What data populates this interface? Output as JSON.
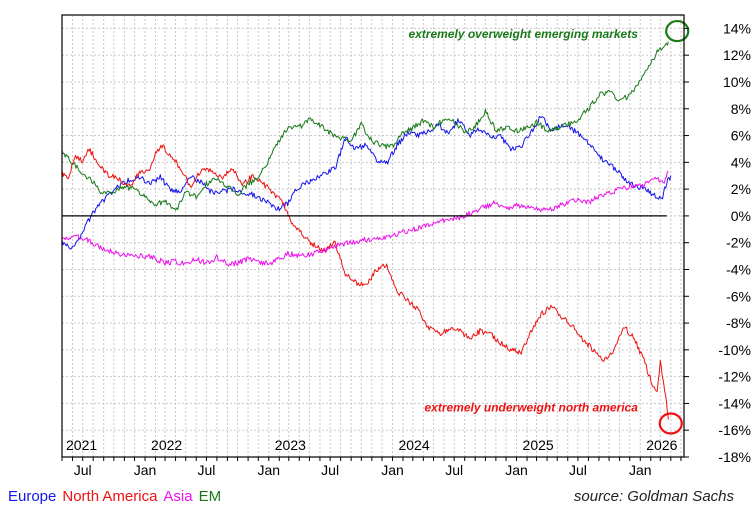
{
  "chart_data": {
    "type": "line",
    "source": "source: Goldman Sachs",
    "ylim": [
      -18,
      15
    ],
    "y_ticks": [
      14,
      12,
      10,
      8,
      6,
      4,
      2,
      0,
      -2,
      -4,
      -6,
      -8,
      -10,
      -12,
      -14,
      -16,
      -18
    ],
    "y_tick_suffix": "%",
    "x_range": [
      "2021-05-01",
      "2026-05-10"
    ],
    "year_labels": [
      {
        "date": "2021-01-01",
        "label": "2021"
      },
      {
        "date": "2022-01-01",
        "label": "2022"
      },
      {
        "date": "2023-01-01",
        "label": "2023"
      },
      {
        "date": "2024-01-01",
        "label": "2024"
      },
      {
        "date": "2025-01-01",
        "label": "2025"
      },
      {
        "date": "2026-01-01",
        "label": "2026"
      }
    ],
    "month_labels": [
      {
        "date": "2021-07-01",
        "label": "Jul"
      },
      {
        "date": "2022-01-01",
        "label": "Jan"
      },
      {
        "date": "2022-07-01",
        "label": "Jul"
      },
      {
        "date": "2023-01-01",
        "label": "Jan"
      },
      {
        "date": "2023-07-01",
        "label": "Jul"
      },
      {
        "date": "2024-01-01",
        "label": "Jan"
      },
      {
        "date": "2024-07-01",
        "label": "Jul"
      },
      {
        "date": "2025-01-01",
        "label": "Jan"
      },
      {
        "date": "2025-07-01",
        "label": "Jul"
      },
      {
        "date": "2026-01-01",
        "label": "Jan"
      }
    ],
    "grid": true,
    "legend_position": "bottom-left",
    "series": [
      {
        "name": "Europe",
        "color": "#1515ee",
        "points": [
          [
            "2021-05-01",
            -2.0
          ],
          [
            "2021-06-01",
            -2.4
          ],
          [
            "2021-06-20",
            -1.8
          ],
          [
            "2021-07-15",
            -0.5
          ],
          [
            "2021-08-15",
            0.8
          ],
          [
            "2021-09-15",
            1.5
          ],
          [
            "2021-10-15",
            2.2
          ],
          [
            "2021-11-15",
            2.7
          ],
          [
            "2021-12-15",
            2.9
          ],
          [
            "2022-01-15",
            2.4
          ],
          [
            "2022-02-15",
            2.9
          ],
          [
            "2022-03-15",
            2.0
          ],
          [
            "2022-04-15",
            1.8
          ],
          [
            "2022-05-15",
            3.0
          ],
          [
            "2022-06-15",
            2.5
          ],
          [
            "2022-07-15",
            1.8
          ],
          [
            "2022-08-15",
            1.8
          ],
          [
            "2022-09-15",
            2.0
          ],
          [
            "2022-10-15",
            1.8
          ],
          [
            "2022-11-15",
            1.6
          ],
          [
            "2022-12-15",
            1.2
          ],
          [
            "2023-01-10",
            0.8
          ],
          [
            "2023-02-01",
            0.5
          ],
          [
            "2023-03-01",
            1.0
          ],
          [
            "2023-03-20",
            2.0
          ],
          [
            "2023-04-15",
            2.4
          ],
          [
            "2023-05-15",
            2.8
          ],
          [
            "2023-06-15",
            3.2
          ],
          [
            "2023-07-15",
            3.5
          ],
          [
            "2023-08-15",
            5.8
          ],
          [
            "2023-09-15",
            5.0
          ],
          [
            "2023-10-15",
            5.3
          ],
          [
            "2023-11-15",
            4.2
          ],
          [
            "2023-12-15",
            3.9
          ],
          [
            "2024-01-15",
            5.3
          ],
          [
            "2024-02-15",
            6.2
          ],
          [
            "2024-03-15",
            6.0
          ],
          [
            "2024-04-15",
            6.3
          ],
          [
            "2024-05-15",
            6.8
          ],
          [
            "2024-06-15",
            6.2
          ],
          [
            "2024-07-15",
            7.2
          ],
          [
            "2024-08-15",
            6.0
          ],
          [
            "2024-09-15",
            6.5
          ],
          [
            "2024-10-15",
            6.0
          ],
          [
            "2024-11-15",
            5.9
          ],
          [
            "2024-12-15",
            5.0
          ],
          [
            "2025-01-15",
            5.2
          ],
          [
            "2025-02-15",
            6.3
          ],
          [
            "2025-03-15",
            7.5
          ],
          [
            "2025-04-15",
            6.3
          ],
          [
            "2025-05-15",
            6.8
          ],
          [
            "2025-06-15",
            6.4
          ],
          [
            "2025-07-15",
            6.0
          ],
          [
            "2025-08-15",
            5.0
          ],
          [
            "2025-09-15",
            4.1
          ],
          [
            "2025-10-15",
            3.6
          ],
          [
            "2025-11-15",
            2.8
          ],
          [
            "2025-12-15",
            2.2
          ],
          [
            "2026-01-15",
            2.0
          ],
          [
            "2026-02-15",
            1.5
          ],
          [
            "2026-03-05",
            1.2
          ],
          [
            "2026-03-20",
            2.5
          ],
          [
            "2026-04-01",
            3.0
          ]
        ]
      },
      {
        "name": "North America",
        "color": "#ee1111",
        "points": [
          [
            "2021-05-01",
            3.2
          ],
          [
            "2021-05-20",
            2.9
          ],
          [
            "2021-06-10",
            4.5
          ],
          [
            "2021-07-01",
            4.0
          ],
          [
            "2021-07-20",
            5.0
          ],
          [
            "2021-08-15",
            4.0
          ],
          [
            "2021-09-15",
            3.0
          ],
          [
            "2021-10-15",
            2.8
          ],
          [
            "2021-11-15",
            2.2
          ],
          [
            "2021-12-15",
            3.2
          ],
          [
            "2022-01-15",
            3.5
          ],
          [
            "2022-02-01",
            4.8
          ],
          [
            "2022-02-20",
            5.2
          ],
          [
            "2022-03-15",
            4.6
          ],
          [
            "2022-04-15",
            3.6
          ],
          [
            "2022-05-15",
            2.2
          ],
          [
            "2022-06-15",
            3.4
          ],
          [
            "2022-07-15",
            3.5
          ],
          [
            "2022-08-15",
            2.8
          ],
          [
            "2022-09-15",
            3.6
          ],
          [
            "2022-10-15",
            2.3
          ],
          [
            "2022-11-15",
            3.0
          ],
          [
            "2022-12-15",
            2.4
          ],
          [
            "2023-01-15",
            1.7
          ],
          [
            "2023-02-15",
            0.8
          ],
          [
            "2023-03-15",
            -0.8
          ],
          [
            "2023-04-15",
            -1.5
          ],
          [
            "2023-05-15",
            -2.2
          ],
          [
            "2023-06-15",
            -2.6
          ],
          [
            "2023-07-15",
            -2.0
          ],
          [
            "2023-08-15",
            -4.3
          ],
          [
            "2023-09-15",
            -5.0
          ],
          [
            "2023-10-15",
            -5.2
          ],
          [
            "2023-11-15",
            -4.0
          ],
          [
            "2023-12-15",
            -3.7
          ],
          [
            "2024-01-15",
            -5.6
          ],
          [
            "2024-02-15",
            -6.3
          ],
          [
            "2024-03-15",
            -7.0
          ],
          [
            "2024-04-15",
            -8.3
          ],
          [
            "2024-05-15",
            -8.8
          ],
          [
            "2024-06-15",
            -8.5
          ],
          [
            "2024-07-15",
            -8.5
          ],
          [
            "2024-08-15",
            -9.2
          ],
          [
            "2024-09-15",
            -8.6
          ],
          [
            "2024-10-15",
            -8.8
          ],
          [
            "2024-11-15",
            -9.5
          ],
          [
            "2024-12-15",
            -10.0
          ],
          [
            "2025-01-15",
            -10.2
          ],
          [
            "2025-02-15",
            -8.6
          ],
          [
            "2025-03-15",
            -7.3
          ],
          [
            "2025-04-15",
            -6.8
          ],
          [
            "2025-05-15",
            -7.6
          ],
          [
            "2025-06-15",
            -8.2
          ],
          [
            "2025-07-15",
            -9.2
          ],
          [
            "2025-08-15",
            -10.0
          ],
          [
            "2025-09-15",
            -10.8
          ],
          [
            "2025-10-15",
            -10.0
          ],
          [
            "2025-11-15",
            -8.3
          ],
          [
            "2025-12-15",
            -9.2
          ],
          [
            "2026-01-15",
            -11.0
          ],
          [
            "2026-02-05",
            -12.6
          ],
          [
            "2026-02-20",
            -13.0
          ],
          [
            "2026-03-01",
            -10.9
          ],
          [
            "2026-03-10",
            -12.5
          ],
          [
            "2026-03-18",
            -13.5
          ],
          [
            "2026-03-25",
            -15.2
          ]
        ]
      },
      {
        "name": "Asia",
        "color": "#ee11ee",
        "points": [
          [
            "2021-05-01",
            -1.8
          ],
          [
            "2021-06-01",
            -1.5
          ],
          [
            "2021-07-01",
            -1.6
          ],
          [
            "2021-08-01",
            -2.1
          ],
          [
            "2021-09-01",
            -2.5
          ],
          [
            "2021-10-01",
            -2.7
          ],
          [
            "2021-11-01",
            -2.9
          ],
          [
            "2021-12-01",
            -3.0
          ],
          [
            "2022-01-01",
            -3.0
          ],
          [
            "2022-02-01",
            -3.2
          ],
          [
            "2022-03-01",
            -3.5
          ],
          [
            "2022-04-01",
            -3.4
          ],
          [
            "2022-05-01",
            -3.6
          ],
          [
            "2022-06-01",
            -3.2
          ],
          [
            "2022-07-01",
            -3.5
          ],
          [
            "2022-08-01",
            -3.1
          ],
          [
            "2022-09-01",
            -3.6
          ],
          [
            "2022-10-01",
            -3.5
          ],
          [
            "2022-11-01",
            -3.2
          ],
          [
            "2022-12-01",
            -3.4
          ],
          [
            "2023-01-01",
            -3.6
          ],
          [
            "2023-02-01",
            -3.2
          ],
          [
            "2023-03-01",
            -2.8
          ],
          [
            "2023-04-01",
            -3.0
          ],
          [
            "2023-05-01",
            -2.9
          ],
          [
            "2023-06-01",
            -2.6
          ],
          [
            "2023-07-01",
            -2.5
          ],
          [
            "2023-08-01",
            -2.1
          ],
          [
            "2023-09-01",
            -2.0
          ],
          [
            "2023-10-01",
            -1.8
          ],
          [
            "2023-11-01",
            -1.7
          ],
          [
            "2023-12-01",
            -1.6
          ],
          [
            "2024-01-01",
            -1.5
          ],
          [
            "2024-02-01",
            -1.2
          ],
          [
            "2024-03-01",
            -1.0
          ],
          [
            "2024-04-01",
            -0.8
          ],
          [
            "2024-05-01",
            -0.6
          ],
          [
            "2024-06-01",
            -0.3
          ],
          [
            "2024-07-01",
            -0.2
          ],
          [
            "2024-08-01",
            0.0
          ],
          [
            "2024-09-01",
            0.4
          ],
          [
            "2024-10-01",
            0.7
          ],
          [
            "2024-11-01",
            1.0
          ],
          [
            "2024-12-01",
            0.5
          ],
          [
            "2025-01-01",
            0.8
          ],
          [
            "2025-02-01",
            0.7
          ],
          [
            "2025-03-01",
            0.6
          ],
          [
            "2025-04-01",
            0.4
          ],
          [
            "2025-05-01",
            0.7
          ],
          [
            "2025-06-01",
            1.0
          ],
          [
            "2025-07-01",
            1.2
          ],
          [
            "2025-08-01",
            1.0
          ],
          [
            "2025-09-01",
            1.5
          ],
          [
            "2025-10-01",
            1.7
          ],
          [
            "2025-11-01",
            2.0
          ],
          [
            "2025-12-01",
            2.2
          ],
          [
            "2026-01-01",
            2.3
          ],
          [
            "2026-02-01",
            2.5
          ],
          [
            "2026-02-20",
            2.9
          ],
          [
            "2026-03-10",
            2.4
          ],
          [
            "2026-03-25",
            3.3
          ]
        ]
      },
      {
        "name": "EM",
        "color": "#1a7a1a",
        "points": [
          [
            "2021-05-01",
            4.7
          ],
          [
            "2021-06-01",
            4.0
          ],
          [
            "2021-07-01",
            3.2
          ],
          [
            "2021-08-01",
            2.5
          ],
          [
            "2021-09-01",
            1.6
          ],
          [
            "2021-10-01",
            1.8
          ],
          [
            "2021-11-01",
            2.2
          ],
          [
            "2021-12-01",
            2.0
          ],
          [
            "2022-01-01",
            1.4
          ],
          [
            "2022-02-01",
            0.8
          ],
          [
            "2022-03-01",
            1.2
          ],
          [
            "2022-04-01",
            0.3
          ],
          [
            "2022-05-01",
            1.8
          ],
          [
            "2022-06-01",
            1.4
          ],
          [
            "2022-07-01",
            2.4
          ],
          [
            "2022-08-01",
            2.8
          ],
          [
            "2022-09-01",
            2.2
          ],
          [
            "2022-10-01",
            1.6
          ],
          [
            "2022-11-01",
            2.4
          ],
          [
            "2022-12-01",
            2.8
          ],
          [
            "2023-01-01",
            4.2
          ],
          [
            "2023-02-01",
            5.6
          ],
          [
            "2023-03-01",
            6.7
          ],
          [
            "2023-04-01",
            6.6
          ],
          [
            "2023-05-01",
            7.2
          ],
          [
            "2023-06-01",
            6.8
          ],
          [
            "2023-07-01",
            6.2
          ],
          [
            "2023-08-01",
            5.8
          ],
          [
            "2023-09-01",
            5.6
          ],
          [
            "2023-10-01",
            6.8
          ],
          [
            "2023-11-01",
            5.6
          ],
          [
            "2023-12-01",
            5.2
          ],
          [
            "2024-01-01",
            5.2
          ],
          [
            "2024-02-01",
            6.2
          ],
          [
            "2024-03-01",
            6.6
          ],
          [
            "2024-04-01",
            7.1
          ],
          [
            "2024-05-01",
            6.6
          ],
          [
            "2024-06-01",
            7.2
          ],
          [
            "2024-07-01",
            7.0
          ],
          [
            "2024-08-01",
            6.3
          ],
          [
            "2024-09-01",
            6.7
          ],
          [
            "2024-10-01",
            7.8
          ],
          [
            "2024-11-01",
            6.4
          ],
          [
            "2024-12-01",
            6.6
          ],
          [
            "2025-01-01",
            6.3
          ],
          [
            "2025-02-01",
            6.6
          ],
          [
            "2025-03-01",
            7.0
          ],
          [
            "2025-04-01",
            6.4
          ],
          [
            "2025-05-01",
            6.6
          ],
          [
            "2025-06-01",
            6.8
          ],
          [
            "2025-07-01",
            7.2
          ],
          [
            "2025-08-01",
            8.0
          ],
          [
            "2025-09-01",
            9.0
          ],
          [
            "2025-10-01",
            9.3
          ],
          [
            "2025-11-01",
            8.6
          ],
          [
            "2025-12-01",
            9.0
          ],
          [
            "2026-01-01",
            10.2
          ],
          [
            "2026-02-01",
            11.4
          ],
          [
            "2026-02-20",
            12.3
          ],
          [
            "2026-03-10",
            12.7
          ],
          [
            "2026-03-25",
            13.0
          ]
        ]
      }
    ],
    "annotations": [
      {
        "text": "extremely overweight emerging markets",
        "color": "#1a7a1a",
        "date": "2025-12-25",
        "y": 13.6,
        "anchor": "end"
      },
      {
        "text": "extremely underweight north america",
        "color": "#ee1111",
        "date": "2025-12-25",
        "y": -14.3,
        "anchor": "end"
      }
    ],
    "circles": [
      {
        "date": "2026-04-20",
        "y": 13.8,
        "color": "#1a7a1a"
      },
      {
        "date": "2026-04-01",
        "y": -15.5,
        "color": "#ee1111"
      }
    ]
  },
  "legend": {
    "europe": "Europe",
    "north_america": "North America",
    "asia": "Asia",
    "em": "EM",
    "colors": {
      "europe": "#1515ee",
      "north_america": "#ee1111",
      "asia": "#ee11ee",
      "em": "#1a7a1a"
    }
  }
}
